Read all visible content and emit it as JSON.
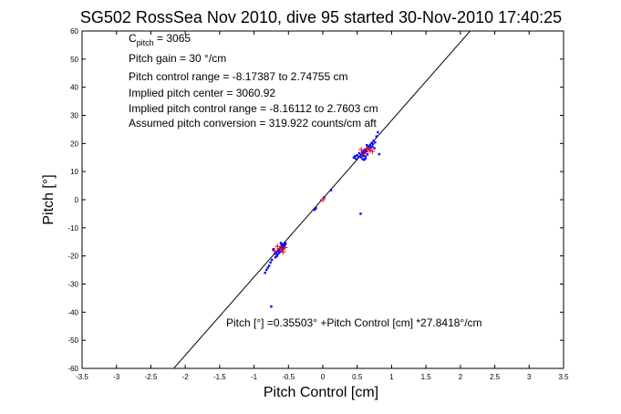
{
  "chart_data": {
    "type": "scatter",
    "title": "SG502 RossSea Nov 2010, dive 95 started 30-Nov-2010 17:40:25",
    "xlabel": "Pitch Control [cm]",
    "ylabel": "Pitch [°]",
    "xlim": [
      -3.5,
      3.5
    ],
    "ylim": [
      -60,
      60
    ],
    "xticks": [
      -3.5,
      -3,
      -2.5,
      -2,
      -1.5,
      -1,
      -0.5,
      0,
      0.5,
      1,
      1.5,
      2,
      2.5,
      3,
      3.5
    ],
    "yticks": [
      -60,
      -50,
      -40,
      -30,
      -20,
      -10,
      0,
      10,
      20,
      30,
      40,
      50,
      60
    ],
    "xtick_labels": [
      "-3.5",
      "-3",
      "-2.5",
      "-2",
      "-1.5",
      "-1",
      "-0.5",
      "0",
      "0.5",
      "1",
      "1.5",
      "2",
      "2.5",
      "3",
      "3.5"
    ],
    "ytick_labels": [
      "-60",
      "-50",
      "-40",
      "-30",
      "-20",
      "-10",
      "0",
      "10",
      "20",
      "30",
      "40",
      "50",
      "60"
    ],
    "grid": false,
    "annotations": [
      {
        "main": "C",
        "sub": "pitch",
        "rest": " = 3065"
      },
      {
        "text": "Pitch gain = 30 °/cm"
      },
      {
        "text": "Pitch control range = -8.17387 to 2.74755 cm"
      },
      {
        "text": "Implied pitch center = 3060.92"
      },
      {
        "text": "Implied pitch control range = -8.16112 to 2.7603 cm"
      },
      {
        "text": "Assumed pitch conversion = 319.922 counts/cm aft"
      }
    ],
    "fit_label": "Pitch [°] =0.35503° +Pitch Control [cm] *27.8418°/cm",
    "fit": {
      "intercept": 0.35503,
      "slope": 27.8418,
      "x_range": [
        -2.17,
        2.16
      ],
      "color": "#000000"
    },
    "series": [
      {
        "marker": "dot",
        "color": "#0000ff",
        "points": [
          [
            0.45,
            15.0
          ],
          [
            0.47,
            15.5
          ],
          [
            0.48,
            14.6
          ],
          [
            0.5,
            15.8
          ],
          [
            0.52,
            15.2
          ],
          [
            0.53,
            16.5
          ],
          [
            0.55,
            16.0
          ],
          [
            0.56,
            15.1
          ],
          [
            0.57,
            17.0
          ],
          [
            0.58,
            16.3
          ],
          [
            0.59,
            15.6
          ],
          [
            0.6,
            17.5
          ],
          [
            0.61,
            16.8
          ],
          [
            0.62,
            15.4
          ],
          [
            0.63,
            18.0
          ],
          [
            0.64,
            17.2
          ],
          [
            0.65,
            16.1
          ],
          [
            0.66,
            18.5
          ],
          [
            0.67,
            19.0
          ],
          [
            0.68,
            17.8
          ],
          [
            0.69,
            19.5
          ],
          [
            0.7,
            18.6
          ],
          [
            0.71,
            20.2
          ],
          [
            0.72,
            18.9
          ],
          [
            0.73,
            19.8
          ],
          [
            0.74,
            21.0
          ],
          [
            0.75,
            18.3
          ],
          [
            0.76,
            20.4
          ],
          [
            0.78,
            22.5
          ],
          [
            0.8,
            24.0
          ],
          [
            0.82,
            16.2
          ],
          [
            0.58,
            14.4
          ],
          [
            0.6,
            14.2
          ],
          [
            0.62,
            14.6
          ],
          [
            0.64,
            19.4
          ],
          [
            -0.54,
            -15.5
          ],
          [
            -0.55,
            -16.2
          ],
          [
            -0.56,
            -15.8
          ],
          [
            -0.57,
            -17.0
          ],
          [
            -0.58,
            -16.4
          ],
          [
            -0.59,
            -18.0
          ],
          [
            -0.6,
            -17.2
          ],
          [
            -0.61,
            -15.4
          ],
          [
            -0.62,
            -18.6
          ],
          [
            -0.63,
            -17.9
          ],
          [
            -0.64,
            -19.0
          ],
          [
            -0.65,
            -18.2
          ],
          [
            -0.66,
            -19.6
          ],
          [
            -0.67,
            -20.1
          ],
          [
            -0.68,
            -18.9
          ],
          [
            -0.69,
            -20.5
          ],
          [
            -0.7,
            -19.3
          ],
          [
            -0.72,
            -17.6
          ],
          [
            -0.74,
            -21.4
          ],
          [
            -0.76,
            -22.3
          ],
          [
            -0.78,
            -23.5
          ],
          [
            -0.8,
            -24.2
          ],
          [
            -0.82,
            -25.0
          ],
          [
            -0.84,
            -26.0
          ],
          [
            -0.6,
            -15.9
          ],
          [
            -0.58,
            -17.6
          ],
          [
            -0.56,
            -16.8
          ],
          [
            -0.1,
            -3.0
          ],
          [
            -0.12,
            -3.6
          ],
          [
            0.02,
            0.8
          ],
          [
            0.12,
            3.4
          ],
          [
            0.55,
            -5.0
          ],
          [
            -0.75,
            -38.0
          ]
        ]
      },
      {
        "marker": "plus",
        "color": "#ff0000",
        "points": [
          [
            0.6,
            16.4
          ],
          [
            0.68,
            17.6
          ],
          [
            0.72,
            17.2
          ],
          [
            0.56,
            17.8
          ],
          [
            0.64,
            18.2
          ],
          [
            -0.62,
            -17.4
          ],
          [
            -0.7,
            -18.2
          ],
          [
            -0.55,
            -17.0
          ],
          [
            -0.66,
            -16.6
          ],
          [
            -0.58,
            -18.6
          ],
          [
            0.0,
            0.0
          ]
        ]
      }
    ]
  }
}
